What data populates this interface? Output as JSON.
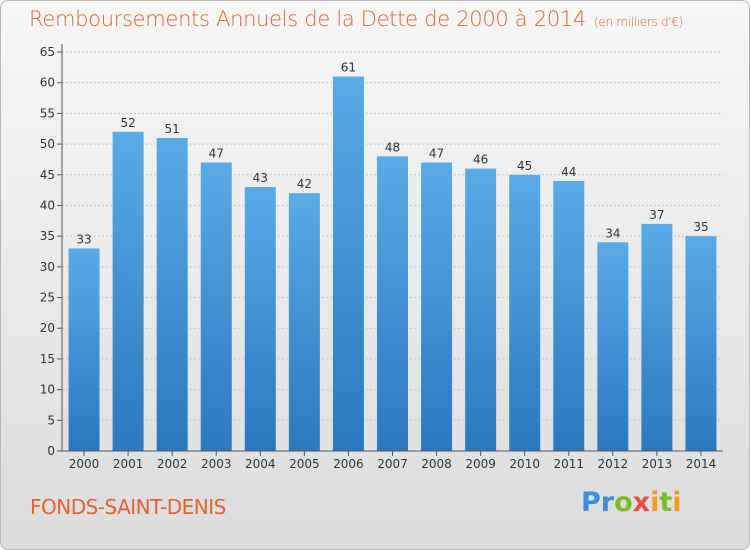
{
  "title": "Remboursements Annuels de la Dette de 2000 à 2014",
  "unit_note": "(en milliers d'€)",
  "location": "FONDS-SAINT-DENIS",
  "logo_text": "Proxiti",
  "colors": {
    "accent": "#e4622d",
    "bar_top": "#5aaae6",
    "bar_bottom": "#2b78bf",
    "grid": "#c8c8c8"
  },
  "chart_data": {
    "type": "bar",
    "categories": [
      "2000",
      "2001",
      "2002",
      "2003",
      "2004",
      "2005",
      "2006",
      "2007",
      "2008",
      "2009",
      "2010",
      "2011",
      "2012",
      "2013",
      "2014"
    ],
    "values": [
      33,
      52,
      51,
      47,
      43,
      42,
      61,
      48,
      47,
      46,
      45,
      44,
      34,
      37,
      35
    ],
    "title": "Remboursements Annuels de la Dette de 2000 à 2014",
    "xlabel": "",
    "ylabel": "",
    "ylim": [
      0,
      65
    ],
    "yticks": [
      0,
      5,
      10,
      15,
      20,
      25,
      30,
      35,
      40,
      45,
      50,
      55,
      60,
      65
    ],
    "grid": true,
    "data_labels": true
  }
}
